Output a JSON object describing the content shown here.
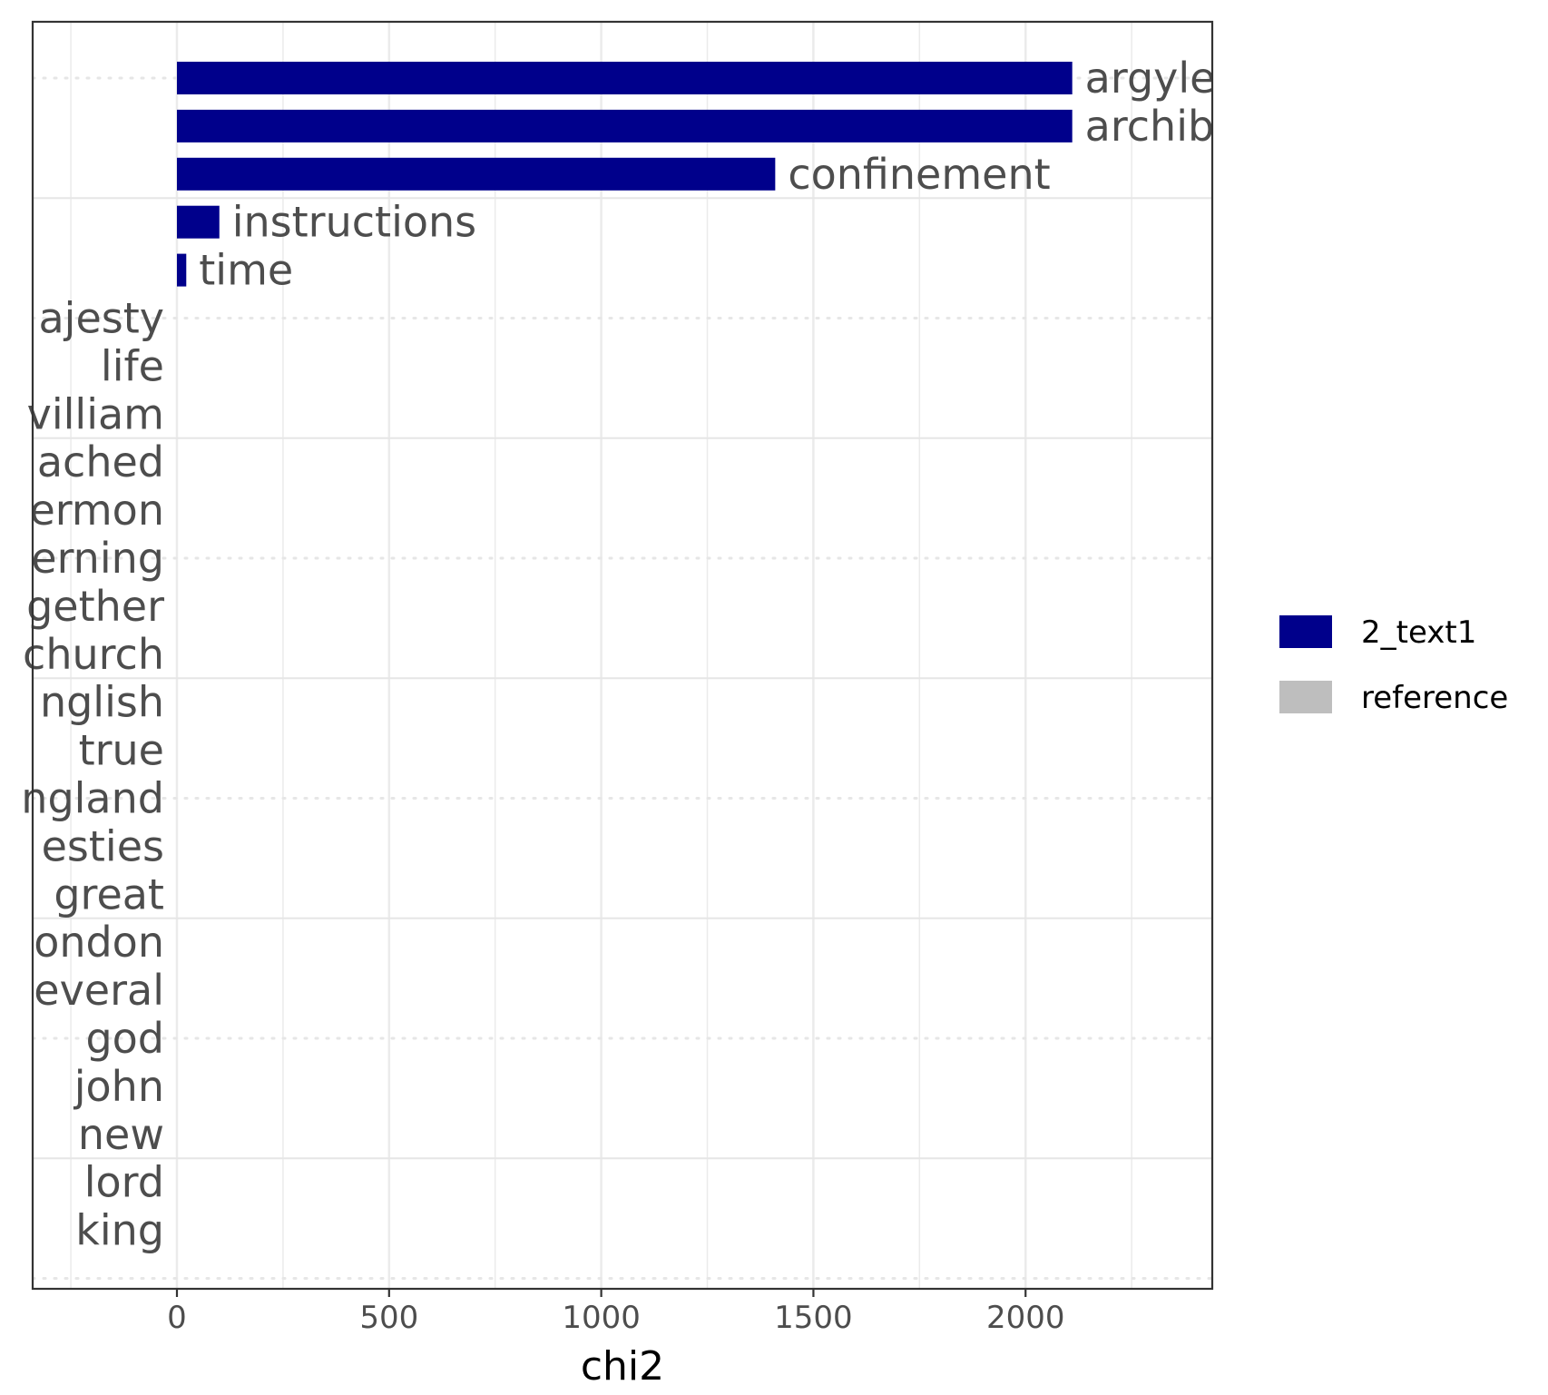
{
  "chart_data": {
    "type": "bar",
    "orientation": "horizontal",
    "xlabel": "chi2",
    "ylabel": "",
    "xlim": [
      -340,
      2440
    ],
    "x_ticks": [
      0,
      500,
      1000,
      1500,
      2000
    ],
    "grid": true,
    "legend_position": "right",
    "series": [
      {
        "name": "2_text1",
        "color": "#00008B"
      },
      {
        "name": "reference",
        "color": "#BEBEBE"
      }
    ],
    "bars": [
      {
        "label": "argyle",
        "value": 2110,
        "series": "2_text1"
      },
      {
        "label": "archib",
        "value": 2110,
        "series": "2_text1"
      },
      {
        "label": "confinement",
        "value": 1410,
        "series": "2_text1"
      },
      {
        "label": "instructions",
        "value": 100,
        "series": "2_text1"
      },
      {
        "label": "time",
        "value": 22,
        "series": "2_text1"
      },
      {
        "label": "ajesty",
        "value": 0,
        "series": "reference"
      },
      {
        "label": "life",
        "value": 0,
        "series": "reference"
      },
      {
        "label": "villiam",
        "value": 0,
        "series": "reference"
      },
      {
        "label": "ached",
        "value": 0,
        "series": "reference"
      },
      {
        "label": "ermon",
        "value": 0,
        "series": "reference"
      },
      {
        "label": "erning",
        "value": 0,
        "series": "reference"
      },
      {
        "label": "gether",
        "value": 0,
        "series": "reference"
      },
      {
        "label": "church",
        "value": 0,
        "series": "reference"
      },
      {
        "label": "nglish",
        "value": 0,
        "series": "reference"
      },
      {
        "label": "true",
        "value": 0,
        "series": "reference"
      },
      {
        "label": "ngland",
        "value": 0,
        "series": "reference"
      },
      {
        "label": "esties",
        "value": 0,
        "series": "reference"
      },
      {
        "label": "great",
        "value": 0,
        "series": "reference"
      },
      {
        "label": "ondon",
        "value": 0,
        "series": "reference"
      },
      {
        "label": "everal",
        "value": 0,
        "series": "reference"
      },
      {
        "label": "god",
        "value": 0,
        "series": "reference"
      },
      {
        "label": "john",
        "value": 0,
        "series": "reference"
      },
      {
        "label": "new",
        "value": 0,
        "series": "reference"
      },
      {
        "label": "lord",
        "value": 0,
        "series": "reference"
      },
      {
        "label": "king",
        "value": 0,
        "series": "reference"
      }
    ]
  }
}
